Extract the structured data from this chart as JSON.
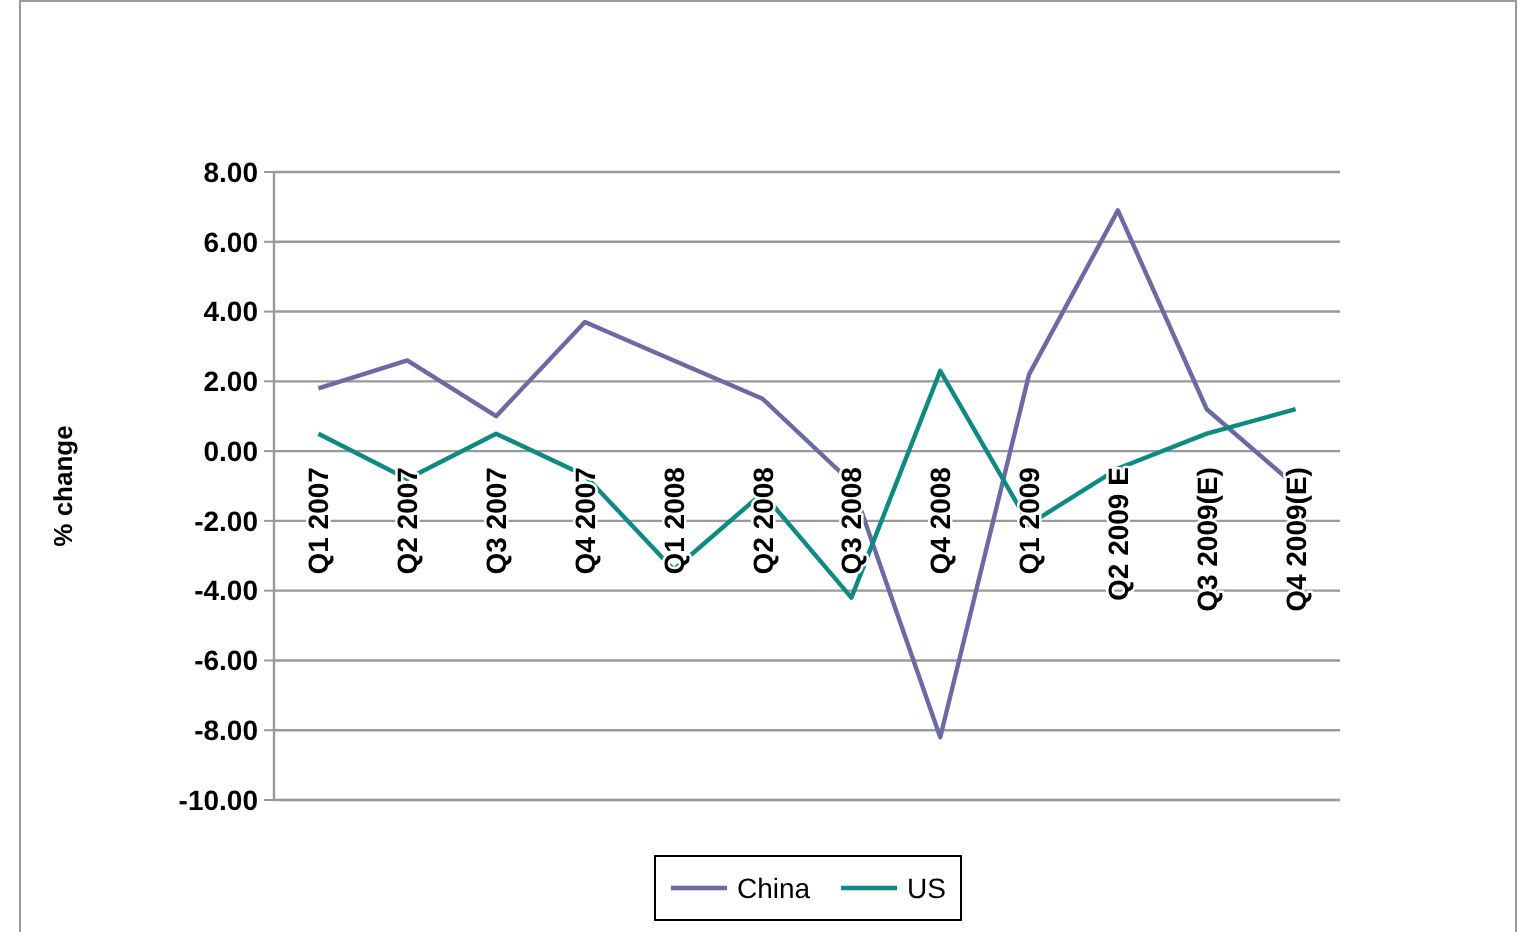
{
  "chart_data": {
    "type": "line",
    "ylabel": "% change",
    "categories": [
      "Q1 2007",
      "Q2 2007",
      "Q3 2007",
      "Q4 2007",
      "Q1 2008",
      "Q2 2008",
      "Q3 2008",
      "Q4 2008",
      "Q1 2009",
      "Q2 2009 E",
      "Q3 2009(E)",
      "Q4 2009(E)"
    ],
    "series": [
      {
        "name": "China",
        "color": "#6b6aa3",
        "values": [
          1.8,
          2.6,
          1.0,
          3.7,
          2.6,
          1.5,
          -0.9,
          -8.2,
          2.2,
          6.9,
          1.2,
          -1.0
        ]
      },
      {
        "name": "US",
        "color": "#0f8a80",
        "values": [
          0.5,
          -0.8,
          0.5,
          -0.7,
          -3.4,
          -1.2,
          -4.2,
          2.3,
          -2.1,
          -0.5,
          0.5,
          1.2
        ]
      }
    ],
    "ylim": [
      -10,
      8
    ],
    "yticks": [
      {
        "value": -10,
        "label": "-10.00"
      },
      {
        "value": -8,
        "label": "-8.00"
      },
      {
        "value": -6,
        "label": "-6.00"
      },
      {
        "value": -4,
        "label": "-4.00"
      },
      {
        "value": -2,
        "label": "-2.00"
      },
      {
        "value": 0,
        "label": "0.00"
      },
      {
        "value": 2,
        "label": "2.00"
      },
      {
        "value": 4,
        "label": "4.00"
      },
      {
        "value": 6,
        "label": "6.00"
      },
      {
        "value": 8,
        "label": "8.00"
      }
    ],
    "grid": "y",
    "legend": "bottom",
    "marker": "none",
    "line_style": "solid"
  }
}
